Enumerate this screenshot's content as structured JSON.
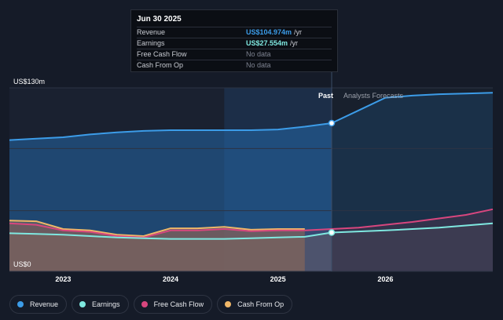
{
  "tooltip": {
    "date": "Jun 30 2025",
    "rows": [
      {
        "label": "Revenue",
        "value": "US$104.974m",
        "unit": "/yr",
        "color": "#3c9ce8"
      },
      {
        "label": "Earnings",
        "value": "US$27.554m",
        "unit": "/yr",
        "color": "#7fe8e0"
      },
      {
        "label": "Free Cash Flow",
        "value": "No data",
        "unit": "",
        "color": "#7d8290"
      },
      {
        "label": "Cash From Op",
        "value": "No data",
        "unit": "",
        "color": "#7d8290"
      }
    ]
  },
  "legend": [
    {
      "label": "Revenue",
      "color": "#3c9ce8"
    },
    {
      "label": "Earnings",
      "color": "#7fe8e0"
    },
    {
      "label": "Free Cash Flow",
      "color": "#d8467e"
    },
    {
      "label": "Cash From Op",
      "color": "#f0b768"
    }
  ],
  "chart_data": {
    "type": "area",
    "y_top_label": "US$130m",
    "y_bottom_label": "US$0",
    "ylim": [
      0,
      130
    ],
    "xlim": [
      2022.5,
      2027.0
    ],
    "x_ticks": [
      {
        "x": 2023.0,
        "label": "2023"
      },
      {
        "x": 2024.0,
        "label": "2024"
      },
      {
        "x": 2025.0,
        "label": "2025"
      },
      {
        "x": 2026.0,
        "label": "2026"
      }
    ],
    "past_label": "Past",
    "forecast_label": "Analysts Forecasts",
    "divider_x": 2025.5,
    "highlight_start_x": 2024.5,
    "grid": true,
    "series": [
      {
        "name": "Revenue",
        "color": "#3c9ce8",
        "x": [
          2022.5,
          2022.75,
          2023.0,
          2023.25,
          2023.5,
          2023.75,
          2024.0,
          2024.25,
          2024.5,
          2024.75,
          2025.0,
          2025.25,
          2025.5
        ],
        "values": [
          93,
          94,
          95,
          97,
          98.5,
          99.5,
          100,
          100,
          100,
          100,
          100.5,
          102.5,
          105
        ],
        "forecast_x": [
          2025.5,
          2025.75,
          2026.0,
          2026.25,
          2026.5,
          2026.75,
          2027.0
        ],
        "forecast_values": [
          105,
          114,
          123,
          124.5,
          125.5,
          126,
          126.5
        ]
      },
      {
        "name": "Earnings",
        "color": "#7fe8e0",
        "x": [
          2022.5,
          2022.75,
          2023.0,
          2023.25,
          2023.5,
          2023.75,
          2024.0,
          2024.25,
          2024.5,
          2024.75,
          2025.0,
          2025.25,
          2025.5
        ],
        "values": [
          27,
          26.5,
          26,
          25,
          24,
          23.5,
          23,
          23,
          23,
          23.5,
          24,
          24.5,
          27.5
        ],
        "forecast_x": [
          2025.5,
          2026.0,
          2026.5,
          2027.0
        ],
        "forecast_values": [
          27.5,
          29,
          31,
          34
        ]
      },
      {
        "name": "Free Cash Flow",
        "color": "#d8467e",
        "x": [
          2022.5,
          2022.75,
          2023.0,
          2023.25,
          2023.5,
          2023.75,
          2024.0,
          2024.25,
          2024.5,
          2024.75,
          2025.0,
          2025.25
        ],
        "values": [
          34,
          33,
          29,
          28,
          25,
          24,
          29,
          29,
          30,
          28.5,
          29,
          29
        ],
        "forecast_x": [
          2025.25,
          2025.75,
          2026.25,
          2026.75,
          2027.0
        ],
        "forecast_values": [
          29,
          31,
          35,
          40,
          44
        ]
      },
      {
        "name": "Cash From Op",
        "color": "#f0b768",
        "x": [
          2022.5,
          2022.75,
          2023.0,
          2023.25,
          2023.5,
          2023.75,
          2024.0,
          2024.25,
          2024.5,
          2024.75,
          2025.0,
          2025.25
        ],
        "values": [
          36,
          35.5,
          30,
          29,
          26,
          25,
          30.5,
          30.5,
          31.5,
          29.5,
          30,
          30
        ],
        "forecast_x": [],
        "forecast_values": []
      }
    ]
  }
}
